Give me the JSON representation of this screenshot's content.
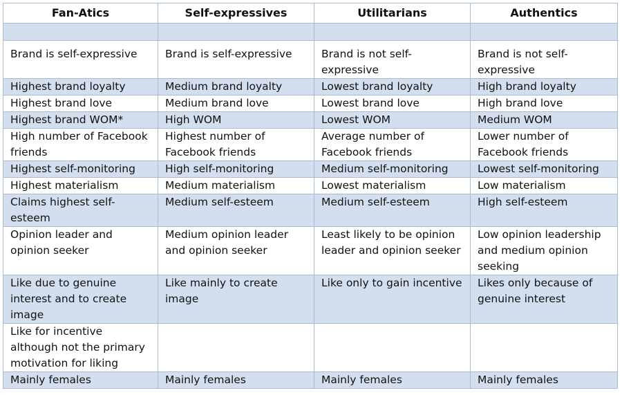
{
  "headers": [
    "Fan-Atics",
    "Self-expressives",
    "Utilitarians",
    "Authentics"
  ],
  "rows": [
    [
      "",
      "",
      "",
      ""
    ],
    [
      "Brand is self-expressive",
      "Brand is self-expressive",
      "Brand is not self-expressive",
      "Brand is not self-expressive"
    ],
    [
      "Highest brand loyalty",
      "Medium brand loyalty",
      "Lowest brand loyalty",
      "High brand loyalty"
    ],
    [
      "Highest brand love",
      "Medium brand love",
      "Lowest brand love",
      "High brand love"
    ],
    [
      "Highest brand WOM*",
      "High WOM",
      "Lowest WOM",
      "Medium WOM"
    ],
    [
      "High number of Facebook friends",
      "Highest number of Facebook friends",
      "Average number of Facebook friends",
      "Lower number of Facebook friends"
    ],
    [
      "Highest self-monitoring",
      "High self-monitoring",
      "Medium self-monitoring",
      "Lowest self-monitoring"
    ],
    [
      "Highest materialism",
      "Medium materialism",
      "Lowest materialism",
      "Low materialism"
    ],
    [
      "Claims highest self-esteem",
      "Medium self-esteem",
      "Medium self-esteem",
      "High self-esteem"
    ],
    [
      "Opinion leader and opinion seeker",
      "Medium opinion leader and opinion seeker",
      "Least likely to be opinion leader and opinion seeker",
      "Low opinion leadership and medium opinion seeking"
    ],
    [
      "Like due to genuine interest and to create image",
      "Like mainly to create image",
      "Like only to gain incentive",
      "Likes only because of genuine interest"
    ],
    [
      "Like for incentive although not the primary motivation for liking",
      "",
      "",
      ""
    ],
    [
      "Mainly females",
      "Mainly females",
      "Mainly females",
      "Mainly females"
    ]
  ]
}
